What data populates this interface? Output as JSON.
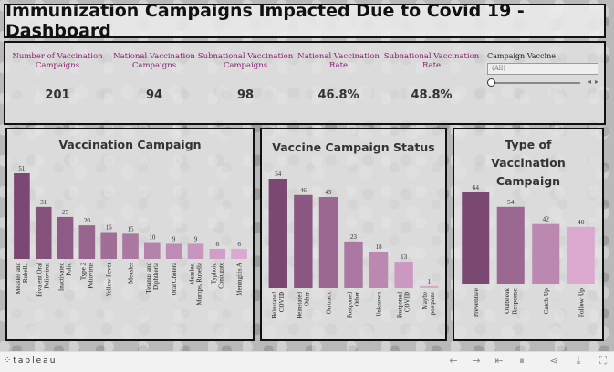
{
  "title": "Immunization Campaigns Impacted Due to Covid 19 - Dashboard",
  "kpis": [
    {
      "label": "Number of Vaccination Campaigns",
      "value": "201"
    },
    {
      "label": "National Vaccination Campaigns",
      "value": "94"
    },
    {
      "label": "Subnational Vaccination Campaigns",
      "value": "98"
    },
    {
      "label": "National Vaccination Rate",
      "value": "46.8%"
    },
    {
      "label": "Subnational Vaccination Rate",
      "value": "48.8%"
    }
  ],
  "filter": {
    "label": "Campaign Vaccine",
    "value": "(All)"
  },
  "colors": {
    "dark": "#7b4873",
    "mid": "#a9679d",
    "light": "#dba8d0",
    "kpi_label": "#8a1b6f"
  },
  "chart_data": [
    {
      "type": "bar",
      "title": "Vaccination Campaign",
      "categories": [
        "Measles and Rubell..",
        "Bivalent Oral Poliovirus",
        "Inactivated Polio",
        "Type 2 Poliovirus",
        "Yellow Fever",
        "Measles",
        "Tetanus and Diphtheria",
        "Oral Cholera",
        "Measles, Mumps, Rubella",
        "Typhoid Conjugate",
        "Meningitis A"
      ],
      "values": [
        51,
        31,
        25,
        20,
        16,
        15,
        10,
        9,
        9,
        6,
        6
      ]
    },
    {
      "type": "bar",
      "title": "Vaccine Campaign Status",
      "categories": [
        "Reinstated COVID",
        "Reinstated Other",
        "On track",
        "Postponed Other",
        "Unknown",
        "Postponed COVID",
        "Maybe postpone"
      ],
      "values": [
        54,
        46,
        45,
        23,
        18,
        13,
        1
      ]
    },
    {
      "type": "bar",
      "title": "Type of Vaccination Campaign",
      "categories": [
        "Preventive",
        "Outbreak Response",
        "Catch Up",
        "Follow Up"
      ],
      "values": [
        64,
        54,
        42,
        40
      ]
    }
  ],
  "footer": {
    "logo": "tableau",
    "icons": [
      "undo-icon",
      "redo-icon",
      "revert-icon",
      "pause-icon",
      "share-icon",
      "download-icon",
      "fullscreen-icon"
    ]
  }
}
